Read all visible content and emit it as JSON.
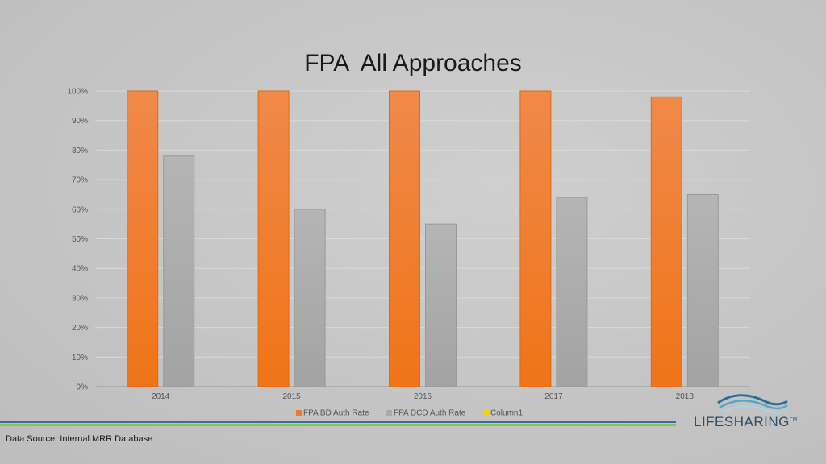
{
  "chart_data": {
    "type": "bar",
    "title": "FPA  All Approaches",
    "categories": [
      "2014",
      "2015",
      "2016",
      "2017",
      "2018"
    ],
    "series": [
      {
        "name": "FPA BD Auth Rate",
        "color": "#f07a28",
        "values": [
          100,
          100,
          100,
          100,
          98
        ]
      },
      {
        "name": "FPA DCD Auth Rate",
        "color": "#a9a9a9",
        "values": [
          78,
          60,
          55,
          64,
          65
        ]
      },
      {
        "name": "Column1",
        "color": "#f2d600",
        "values": [
          0,
          0,
          0,
          0,
          0
        ]
      }
    ],
    "ylim": [
      0,
      100
    ],
    "yticks": [
      "0%",
      "10%",
      "20%",
      "30%",
      "40%",
      "50%",
      "60%",
      "70%",
      "80%",
      "90%",
      "100%"
    ],
    "grid": true,
    "legend": "bottom"
  },
  "footer": {
    "source": "Data Source: Internal MRR Database",
    "logo_text": "LIFESHARING",
    "logo_mark": "TM",
    "bar_colors": [
      "#2e6fb6",
      "#8cc63f"
    ]
  }
}
